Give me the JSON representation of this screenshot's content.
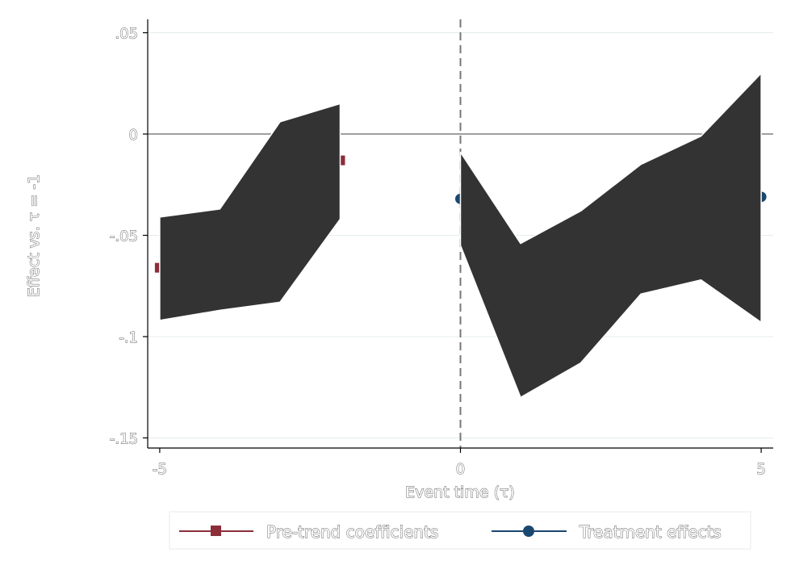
{
  "chart_data": {
    "type": "line",
    "title": "",
    "xlabel": "Event time (τ)",
    "ylabel": "Effect vs. τ = -1",
    "xlim": [
      -5.2,
      5.2
    ],
    "ylim": [
      -0.155,
      0.055
    ],
    "xticks": [
      -5,
      0,
      5
    ],
    "xtick_labels": [
      "-5",
      "0",
      "5"
    ],
    "yticks": [
      0.05,
      0,
      -0.05,
      -0.1,
      -0.15
    ],
    "ytick_labels": [
      ".05",
      "0",
      "-.05",
      "-.1",
      "-.15"
    ],
    "grid": true,
    "reference_lines": {
      "horizontal_y": 0,
      "vertical_x": 0,
      "vertical_style": "dashed"
    },
    "legend_position": "bottom",
    "series": [
      {
        "name": "Pre-trend coefficients",
        "color": "#8b2e3a",
        "marker": "square",
        "x": [
          -5,
          -4,
          -3,
          -2
        ],
        "values": [
          -0.066,
          -0.062,
          -0.039,
          -0.013
        ],
        "ci_lower": [
          -0.092,
          -0.087,
          -0.083,
          -0.042
        ],
        "ci_upper": [
          -0.041,
          -0.037,
          0.006,
          0.015
        ]
      },
      {
        "name": "Treatment effects",
        "color": "#1a476f",
        "marker": "circle",
        "x": [
          0,
          1,
          2,
          3,
          4,
          5
        ],
        "values": [
          -0.032,
          -0.092,
          -0.076,
          -0.047,
          -0.036,
          -0.031
        ],
        "ci_lower": [
          -0.055,
          -0.13,
          -0.113,
          -0.079,
          -0.072,
          -0.093
        ],
        "ci_upper": [
          -0.009,
          -0.054,
          -0.038,
          -0.015,
          -0.001,
          0.03
        ]
      }
    ]
  },
  "legend": {
    "items": [
      {
        "label": "Pre-trend coefficients",
        "color": "#8b2e3a",
        "marker": "square"
      },
      {
        "label": "Treatment effects",
        "color": "#1a476f",
        "marker": "circle"
      }
    ]
  }
}
